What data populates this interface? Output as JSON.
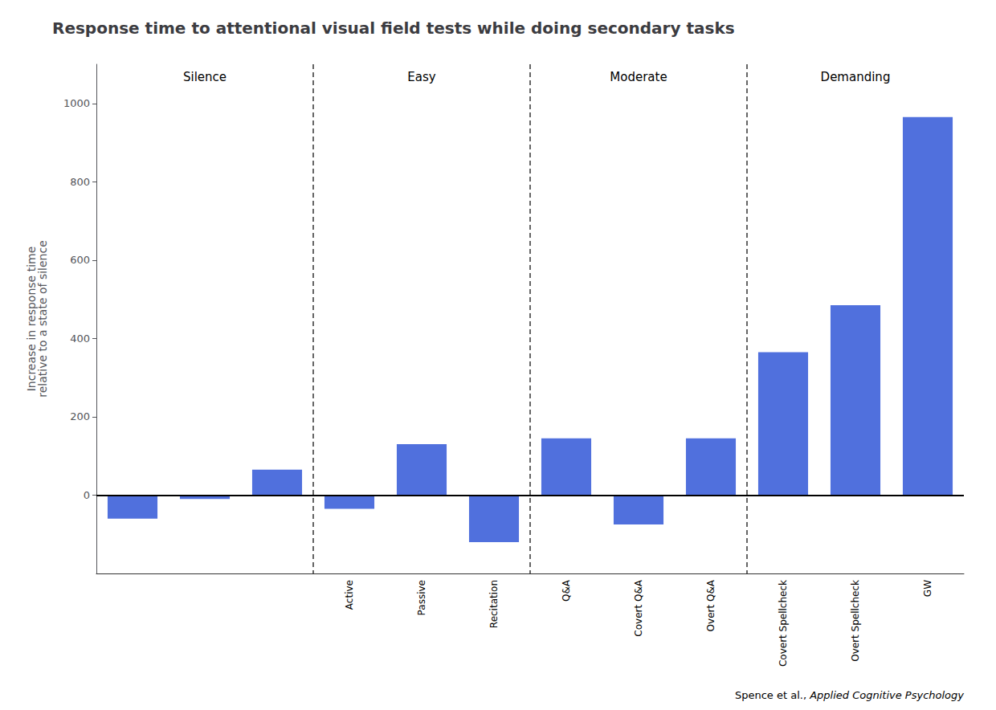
{
  "chart_data": {
    "type": "bar",
    "title": "Response time to attentional visual field tests while doing secondary tasks",
    "ylabel": "Increase in response time\nrelative to a state of silence",
    "categories": [
      null,
      null,
      null,
      "Active",
      "Passive",
      "Recitation",
      "Q&A",
      "Covert Q&A",
      "Overt Q&A",
      "Covert Spellcheck",
      "Overt Spellcheck",
      "GW"
    ],
    "values": [
      -60,
      -10,
      65,
      -35,
      130,
      -120,
      145,
      -75,
      145,
      365,
      485,
      965
    ],
    "groups": [
      "Silence",
      "Silence",
      "Silence",
      "Easy",
      "Easy",
      "Easy",
      "Moderate",
      "Moderate",
      "Moderate",
      "Demanding",
      "Demanding",
      "Demanding"
    ],
    "ylim": [
      -200,
      1100
    ],
    "yticks": [
      0,
      200,
      400,
      600,
      800,
      1000
    ],
    "grid": false,
    "annotations": [
      {
        "text": "Spence et al., ",
        "style": "normal"
      },
      {
        "text": "Applied Cognitive Psychology",
        "style": "italic"
      }
    ]
  }
}
